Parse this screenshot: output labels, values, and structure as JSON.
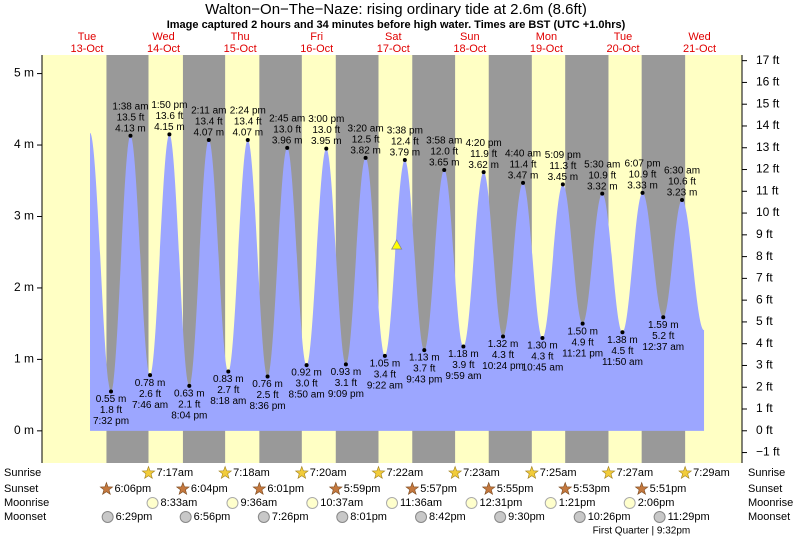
{
  "chart_data": {
    "type": "tide",
    "title": "Walton−On−The−Naze: rising  ordinary tide at 2.6m (8.6ft)",
    "subtitle": "Image captured 2 hours and 34 minutes before high water. Times are BST (UTC +1.0hrs)",
    "xlim": [
      -2.1,
      217.3
    ],
    "xticks": [
      {
        "value": 12,
        "label": "Tue"
      },
      {
        "value": 36,
        "label": "Wed"
      },
      {
        "value": 60,
        "label": "Thu"
      },
      {
        "value": 84,
        "label": "Fri"
      },
      {
        "value": 108,
        "label": "Sat"
      },
      {
        "value": 132,
        "label": "Sun"
      },
      {
        "value": 156,
        "label": "Mon"
      },
      {
        "value": 180,
        "label": "Tue"
      },
      {
        "value": 204,
        "label": "Wed"
      }
    ],
    "xtick_dates": [
      "13-Oct",
      "14-Oct",
      "15-Oct",
      "16-Oct",
      "17-Oct",
      "18-Oct",
      "19-Oct",
      "20-Oct",
      "21-Oct"
    ],
    "ylim": [
      -0.45,
      5.26
    ],
    "yticks": [
      {
        "value": 0,
        "label": "0 m"
      },
      {
        "value": 1,
        "label": "1 m"
      },
      {
        "value": 2,
        "label": "2 m"
      },
      {
        "value": 3,
        "label": "3 m"
      },
      {
        "value": 4,
        "label": "4 m"
      },
      {
        "value": 5,
        "label": "5 m"
      }
    ],
    "y2lim": [
      -1.48,
      17.26
    ],
    "y2ticks": [
      {
        "value": -1,
        "label": "−1 ft"
      },
      {
        "value": 0,
        "label": "0 ft"
      },
      {
        "value": 1,
        "label": "1 ft"
      },
      {
        "value": 2,
        "label": "2 ft"
      },
      {
        "value": 3,
        "label": "3 ft"
      },
      {
        "value": 4,
        "label": "4 ft"
      },
      {
        "value": 5,
        "label": "5 ft"
      },
      {
        "value": 6,
        "label": "6 ft"
      },
      {
        "value": 7,
        "label": "7 ft"
      },
      {
        "value": 8,
        "label": "8 ft"
      },
      {
        "value": 9,
        "label": "9 ft"
      },
      {
        "value": 10,
        "label": "10 ft"
      },
      {
        "value": 11,
        "label": "11 ft"
      },
      {
        "value": 12,
        "label": "12 ft"
      },
      {
        "value": 13,
        "label": "13 ft"
      },
      {
        "value": 14,
        "label": "14 ft"
      },
      {
        "value": 15,
        "label": "15 ft"
      },
      {
        "value": 16,
        "label": "16 ft"
      },
      {
        "value": 17,
        "label": "17 ft"
      }
    ],
    "color": "#9ca6ff",
    "day_color": "#ffffc4",
    "night_color": "#999999",
    "x": [
      12.95,
      19.53,
      25.63,
      31.77,
      37.83,
      44.07,
      50.18,
      56.3,
      62.4,
      68.6,
      74.75,
      80.83,
      87.0,
      93.15,
      99.33,
      105.37,
      111.63,
      117.72,
      123.97,
      129.98,
      136.33,
      142.4,
      148.67,
      154.75,
      161.15,
      167.35,
      173.5,
      179.83,
      186.12,
      192.62,
      198.5,
      205.4
    ],
    "values": [
      4.17,
      0.55,
      4.13,
      0.78,
      4.15,
      0.63,
      4.07,
      0.83,
      4.07,
      0.76,
      3.96,
      0.92,
      3.95,
      0.93,
      3.82,
      1.05,
      3.79,
      1.13,
      3.65,
      1.18,
      3.62,
      1.32,
      3.47,
      1.3,
      3.45,
      1.5,
      3.32,
      1.38,
      3.33,
      1.59,
      3.23,
      1.41
    ],
    "value_labels": [
      null,
      "0.55 m",
      "4.13 m",
      "0.78 m",
      "4.15 m",
      "0.63 m",
      "4.07 m",
      "0.83 m",
      "4.07 m",
      "0.76 m",
      "3.96 m",
      "0.92 m",
      "3.95 m",
      "0.93 m",
      "3.82 m",
      "1.05 m",
      "3.79 m",
      "1.13 m",
      "3.65 m",
      "1.18 m",
      "3.62 m",
      "1.32 m",
      "3.47 m",
      "1.30 m",
      "3.45 m",
      "1.50 m",
      "3.32 m",
      "1.38 m",
      "3.33 m",
      "1.59 m",
      "3.23 m",
      null
    ],
    "ft_labels": [
      null,
      "1.8 ft",
      "13.5 ft",
      "2.6 ft",
      "13.6 ft",
      "2.1 ft",
      "13.4 ft",
      "2.7 ft",
      "13.4 ft",
      "2.5 ft",
      "13.0 ft",
      "3.0 ft",
      "13.0 ft",
      "3.1 ft",
      "12.5 ft",
      "3.4 ft",
      "12.4 ft",
      "3.7 ft",
      "12.0 ft",
      "3.9 ft",
      "11.9 ft",
      "4.3 ft",
      "11.4 ft",
      "4.3 ft",
      "11.3 ft",
      "4.9 ft",
      "10.9 ft",
      "4.5 ft",
      "10.9 ft",
      "5.2 ft",
      "10.6 ft",
      null
    ],
    "time_labels": [
      null,
      "7:32 pm",
      "1:38 am",
      "7:46 am",
      "1:50 pm",
      "8:04 pm",
      "2:11 am",
      "8:18 am",
      "2:24 pm",
      "8:36 pm",
      "2:45 am",
      "8:50 am",
      "3:00 pm",
      "9:09 pm",
      "3:20 am",
      "9:22 am",
      "3:38 pm",
      "9:43 pm",
      "3:58 am",
      "9:59 am",
      "4:20 pm",
      "10:24 pm",
      "4:40 am",
      "10:45 am",
      "5:09 pm",
      "11:21 pm",
      "5:30 am",
      "11:50 am",
      "6:07 pm",
      "12:37 am",
      "6:30 am",
      null
    ],
    "current": {
      "x": 109.07,
      "value": 2.6
    },
    "row_labels": [
      "Sunrise",
      "Sunset",
      "Moonrise",
      "Moonset"
    ],
    "sunrise": {
      "x": [
        31.28,
        55.3,
        79.33,
        103.37,
        127.38,
        151.42,
        175.45,
        199.48
      ],
      "labels": [
        "7:17am",
        "7:18am",
        "7:20am",
        "7:22am",
        "7:23am",
        "7:25am",
        "7:27am",
        "7:29am"
      ]
    },
    "sunset": {
      "x": [
        18.1,
        42.07,
        66.02,
        89.98,
        113.95,
        137.92,
        161.88,
        185.85
      ],
      "labels": [
        "6:06pm",
        "6:04pm",
        "6:01pm",
        "5:59pm",
        "5:57pm",
        "5:55pm",
        "5:53pm",
        "5:51pm"
      ]
    },
    "moonrise": {
      "x": [
        32.55,
        57.6,
        82.62,
        107.6,
        132.52,
        157.35,
        182.1
      ],
      "labels": [
        "8:33am",
        "9:36am",
        "10:37am",
        "11:36am",
        "12:31pm",
        "1:21pm",
        "2:06pm"
      ]
    },
    "moonset": {
      "x": [
        18.48,
        42.93,
        67.43,
        92.02,
        116.7,
        141.5,
        166.43,
        191.48
      ],
      "labels": [
        "6:29pm",
        "6:56pm",
        "7:26pm",
        "8:01pm",
        "8:42pm",
        "9:30pm",
        "10:26pm",
        "11:29pm"
      ]
    },
    "moon_phase": {
      "x": 189.53,
      "label": "First Quarter | 9:32pm"
    }
  }
}
